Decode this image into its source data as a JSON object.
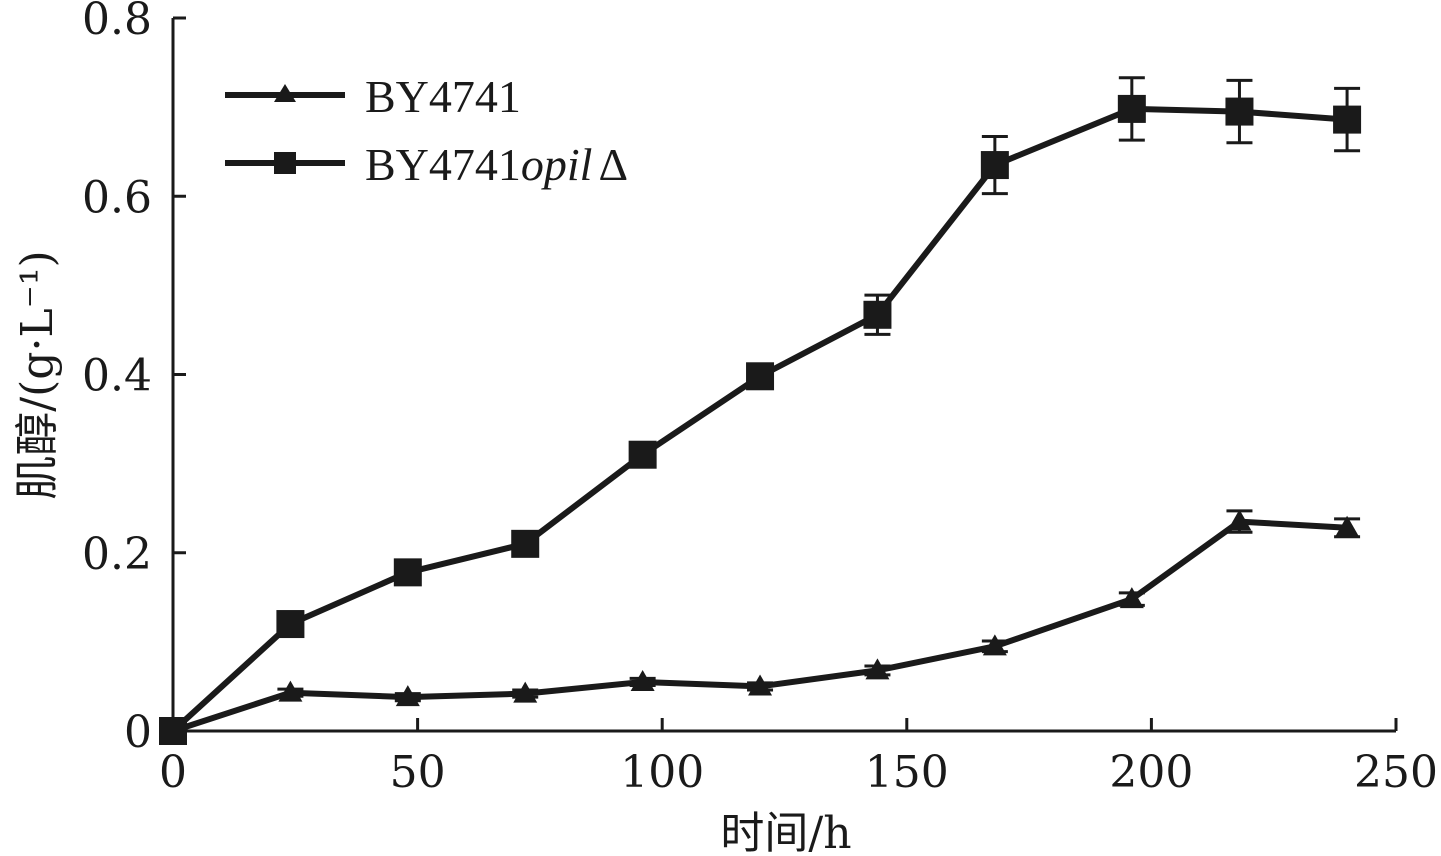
{
  "chart_data": {
    "type": "line",
    "xlabel": "时间/h",
    "ylabel": "肌醇/(g·L⁻¹)",
    "xlim": [
      0,
      250
    ],
    "ylim": [
      0,
      0.8
    ],
    "xticks": [
      0,
      50,
      100,
      150,
      200,
      250
    ],
    "yticks": [
      0,
      0.2,
      0.4,
      0.6,
      0.8
    ],
    "xtick_labels": [
      "0",
      "50",
      "100",
      "150",
      "200",
      "250"
    ],
    "ytick_labels": [
      "0",
      "0.2",
      "0.4",
      "0.6",
      "0.8"
    ],
    "grid": false,
    "legend_position": "top-left",
    "series": [
      {
        "name": "BY4741",
        "marker": "triangle",
        "color": "#1a1a1a",
        "x": [
          0,
          24,
          48,
          72,
          96,
          120,
          144,
          168,
          196,
          218,
          240
        ],
        "y": [
          0,
          0.043,
          0.038,
          0.042,
          0.055,
          0.05,
          0.068,
          0.095,
          0.148,
          0.235,
          0.228
        ],
        "error": [
          0,
          0.004,
          0.004,
          0.004,
          0.004,
          0.004,
          0.005,
          0.006,
          0.007,
          0.012,
          0.01
        ]
      },
      {
        "name": "BY4741opilΔ",
        "name_parts": [
          "BY4741",
          "opil",
          "Δ"
        ],
        "marker": "square",
        "color": "#1a1a1a",
        "x": [
          0,
          24,
          48,
          72,
          96,
          120,
          144,
          168,
          196,
          218,
          240
        ],
        "y": [
          0,
          0.12,
          0.178,
          0.21,
          0.31,
          0.398,
          0.467,
          0.635,
          0.698,
          0.695,
          0.686
        ],
        "error": [
          0,
          0.004,
          0.004,
          0.005,
          0.005,
          0.012,
          0.022,
          0.032,
          0.035,
          0.035,
          0.035
        ]
      }
    ]
  }
}
